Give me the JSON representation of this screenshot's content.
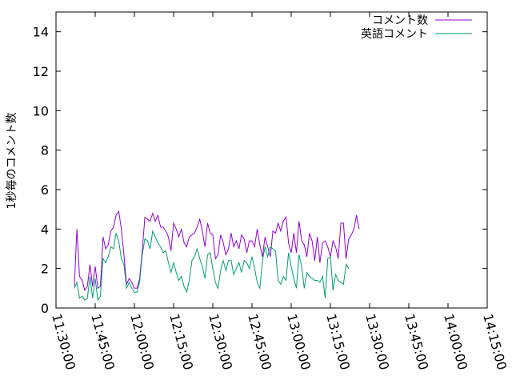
{
  "chart_data": {
    "type": "line",
    "ylabel": "1秒毎のコメント数",
    "ylim": [
      0,
      15
    ],
    "yticks": [
      0,
      2,
      4,
      6,
      8,
      10,
      12,
      14
    ],
    "xlim": [
      "11:30:00",
      "14:15:00"
    ],
    "xticks": [
      "11:30:00",
      "11:45:00",
      "12:00:00",
      "12:15:00",
      "12:30:00",
      "12:45:00",
      "13:00:00",
      "13:15:00",
      "13:30:00",
      "13:45:00",
      "14:00:00",
      "14:15:00"
    ],
    "grid": false,
    "legend_position": "top-right",
    "series": [
      {
        "name": "コメント数",
        "color": "#9400d3",
        "points": [
          [
            "11:37:00",
            1.1
          ],
          [
            "11:38:00",
            4.0
          ],
          [
            "11:39:00",
            1.6
          ],
          [
            "11:40:00",
            1.4
          ],
          [
            "11:41:00",
            0.9
          ],
          [
            "11:42:00",
            1.1
          ],
          [
            "11:43:00",
            2.2
          ],
          [
            "11:44:00",
            1.1
          ],
          [
            "11:45:00",
            2.1
          ],
          [
            "11:46:00",
            1.0
          ],
          [
            "11:47:00",
            1.1
          ],
          [
            "11:48:00",
            3.6
          ],
          [
            "11:49:00",
            3.0
          ],
          [
            "11:50:00",
            3.2
          ],
          [
            "11:51:00",
            3.9
          ],
          [
            "11:52:00",
            4.1
          ],
          [
            "11:53:00",
            4.7
          ],
          [
            "11:54:00",
            4.9
          ],
          [
            "11:55:00",
            4.0
          ],
          [
            "11:56:00",
            2.7
          ],
          [
            "11:57:00",
            1.2
          ],
          [
            "11:58:00",
            1.5
          ],
          [
            "11:59:00",
            1.3
          ],
          [
            "12:00:00",
            1.0
          ],
          [
            "12:01:00",
            1.0
          ],
          [
            "12:02:00",
            1.5
          ],
          [
            "12:03:00",
            2.9
          ],
          [
            "12:04:00",
            4.6
          ],
          [
            "12:05:00",
            4.5
          ],
          [
            "12:06:00",
            4.4
          ],
          [
            "12:07:00",
            4.8
          ],
          [
            "12:08:00",
            4.4
          ],
          [
            "12:09:00",
            4.7
          ],
          [
            "12:10:00",
            4.1
          ],
          [
            "12:11:00",
            4.1
          ],
          [
            "12:12:00",
            3.9
          ],
          [
            "12:13:00",
            3.6
          ],
          [
            "12:14:00",
            2.9
          ],
          [
            "12:15:00",
            4.3
          ],
          [
            "12:16:00",
            4.0
          ],
          [
            "12:17:00",
            3.6
          ],
          [
            "12:18:00",
            4.0
          ],
          [
            "12:19:00",
            3.3
          ],
          [
            "12:20:00",
            3.1
          ],
          [
            "12:21:00",
            3.6
          ],
          [
            "12:22:00",
            3.7
          ],
          [
            "12:23:00",
            3.8
          ],
          [
            "12:24:00",
            4.1
          ],
          [
            "12:25:00",
            4.5
          ],
          [
            "12:26:00",
            3.9
          ],
          [
            "12:27:00",
            3.1
          ],
          [
            "12:28:00",
            4.3
          ],
          [
            "12:29:00",
            3.8
          ],
          [
            "12:30:00",
            3.7
          ],
          [
            "12:31:00",
            2.5
          ],
          [
            "12:32:00",
            2.7
          ],
          [
            "12:33:00",
            3.7
          ],
          [
            "12:34:00",
            3.3
          ],
          [
            "12:35:00",
            2.7
          ],
          [
            "12:36:00",
            3.0
          ],
          [
            "12:37:00",
            3.8
          ],
          [
            "12:38:00",
            3.1
          ],
          [
            "12:39:00",
            3.4
          ],
          [
            "12:40:00",
            3.0
          ],
          [
            "12:41:00",
            3.7
          ],
          [
            "12:42:00",
            3.5
          ],
          [
            "12:43:00",
            2.8
          ],
          [
            "12:44:00",
            3.4
          ],
          [
            "12:45:00",
            3.4
          ],
          [
            "12:46:00",
            3.1
          ],
          [
            "12:47:00",
            4.0
          ],
          [
            "12:48:00",
            3.2
          ],
          [
            "12:49:00",
            2.6
          ],
          [
            "12:50:00",
            3.6
          ],
          [
            "12:51:00",
            3.1
          ],
          [
            "12:52:00",
            2.6
          ],
          [
            "12:53:00",
            3.9
          ],
          [
            "12:54:00",
            3.8
          ],
          [
            "12:55:00",
            4.3
          ],
          [
            "12:56:00",
            3.9
          ],
          [
            "12:57:00",
            4.4
          ],
          [
            "12:58:00",
            4.6
          ],
          [
            "12:59:00",
            3.3
          ],
          [
            "13:00:00",
            2.8
          ],
          [
            "13:01:00",
            3.8
          ],
          [
            "13:02:00",
            2.8
          ],
          [
            "13:03:00",
            4.4
          ],
          [
            "13:04:00",
            3.4
          ],
          [
            "13:05:00",
            3.2
          ],
          [
            "13:06:00",
            2.6
          ],
          [
            "13:07:00",
            3.8
          ],
          [
            "13:08:00",
            3.4
          ],
          [
            "13:09:00",
            2.4
          ],
          [
            "13:10:00",
            3.6
          ],
          [
            "13:11:00",
            2.3
          ],
          [
            "13:12:00",
            3.3
          ],
          [
            "13:13:00",
            3.4
          ],
          [
            "13:14:00",
            3.1
          ],
          [
            "13:15:00",
            2.6
          ],
          [
            "13:16:00",
            3.4
          ],
          [
            "13:17:00",
            3.1
          ],
          [
            "13:18:00",
            2.5
          ],
          [
            "13:19:00",
            4.3
          ],
          [
            "13:20:00",
            4.3
          ],
          [
            "13:21:00",
            2.5
          ],
          [
            "13:22:00",
            3.5
          ],
          [
            "13:23:00",
            3.7
          ],
          [
            "13:24:00",
            4.0
          ],
          [
            "13:25:00",
            4.7
          ],
          [
            "13:26:00",
            4.0
          ]
        ]
      },
      {
        "name": "英語コメント",
        "color": "#009e73",
        "points": [
          [
            "11:37:00",
            1.0
          ],
          [
            "11:38:00",
            1.3
          ],
          [
            "11:39:00",
            0.5
          ],
          [
            "11:40:00",
            0.6
          ],
          [
            "11:41:00",
            0.4
          ],
          [
            "11:42:00",
            0.5
          ],
          [
            "11:43:00",
            1.6
          ],
          [
            "11:44:00",
            0.5
          ],
          [
            "11:45:00",
            1.5
          ],
          [
            "11:46:00",
            0.4
          ],
          [
            "11:47:00",
            0.6
          ],
          [
            "11:48:00",
            2.5
          ],
          [
            "11:49:00",
            2.3
          ],
          [
            "11:50:00",
            2.6
          ],
          [
            "11:51:00",
            3.1
          ],
          [
            "11:52:00",
            3.0
          ],
          [
            "11:53:00",
            3.8
          ],
          [
            "11:54:00",
            3.4
          ],
          [
            "11:55:00",
            2.5
          ],
          [
            "11:56:00",
            2.2
          ],
          [
            "11:57:00",
            1.0
          ],
          [
            "11:58:00",
            1.3
          ],
          [
            "11:59:00",
            1.0
          ],
          [
            "12:00:00",
            0.8
          ],
          [
            "12:01:00",
            0.8
          ],
          [
            "12:02:00",
            1.3
          ],
          [
            "12:03:00",
            2.7
          ],
          [
            "12:04:00",
            3.5
          ],
          [
            "12:05:00",
            3.4
          ],
          [
            "12:06:00",
            3.0
          ],
          [
            "12:07:00",
            3.9
          ],
          [
            "12:08:00",
            3.6
          ],
          [
            "12:09:00",
            3.3
          ],
          [
            "12:10:00",
            3.1
          ],
          [
            "12:11:00",
            2.8
          ],
          [
            "12:12:00",
            2.9
          ],
          [
            "12:13:00",
            2.3
          ],
          [
            "12:14:00",
            1.8
          ],
          [
            "12:15:00",
            2.3
          ],
          [
            "12:16:00",
            1.8
          ],
          [
            "12:17:00",
            1.4
          ],
          [
            "12:18:00",
            1.6
          ],
          [
            "12:19:00",
            1.1
          ],
          [
            "12:20:00",
            0.8
          ],
          [
            "12:21:00",
            1.4
          ],
          [
            "12:22:00",
            2.4
          ],
          [
            "12:23:00",
            2.6
          ],
          [
            "12:24:00",
            3.0
          ],
          [
            "12:25:00",
            2.5
          ],
          [
            "12:26:00",
            2.1
          ],
          [
            "12:27:00",
            1.5
          ],
          [
            "12:28:00",
            2.7
          ],
          [
            "12:29:00",
            2.8
          ],
          [
            "12:30:00",
            2.0
          ],
          [
            "12:31:00",
            1.3
          ],
          [
            "12:32:00",
            1.0
          ],
          [
            "12:33:00",
            1.9
          ],
          [
            "12:34:00",
            2.4
          ],
          [
            "12:35:00",
            1.9
          ],
          [
            "12:36:00",
            2.4
          ],
          [
            "12:37:00",
            2.4
          ],
          [
            "12:38:00",
            1.7
          ],
          [
            "12:39:00",
            2.0
          ],
          [
            "12:40:00",
            2.3
          ],
          [
            "12:41:00",
            1.8
          ],
          [
            "12:42:00",
            2.4
          ],
          [
            "12:43:00",
            2.3
          ],
          [
            "12:44:00",
            2.0
          ],
          [
            "12:45:00",
            2.6
          ],
          [
            "12:46:00",
            2.0
          ],
          [
            "12:47:00",
            1.3
          ],
          [
            "12:48:00",
            1.0
          ],
          [
            "12:49:00",
            2.4
          ],
          [
            "12:50:00",
            3.1
          ],
          [
            "12:51:00",
            2.6
          ],
          [
            "12:52:00",
            3.1
          ],
          [
            "12:53:00",
            3.0
          ],
          [
            "12:54:00",
            2.9
          ],
          [
            "12:55:00",
            1.4
          ],
          [
            "12:56:00",
            1.2
          ],
          [
            "12:57:00",
            1.6
          ],
          [
            "12:58:00",
            1.4
          ],
          [
            "12:59:00",
            2.8
          ],
          [
            "13:00:00",
            2.1
          ],
          [
            "13:01:00",
            1.5
          ],
          [
            "13:02:00",
            1.0
          ],
          [
            "13:03:00",
            2.7
          ],
          [
            "13:04:00",
            2.1
          ],
          [
            "13:05:00",
            1.0
          ],
          [
            "13:06:00",
            1.8
          ],
          [
            "13:07:00",
            1.6
          ],
          [
            "13:08:00",
            1.5
          ],
          [
            "13:09:00",
            1.4
          ],
          [
            "13:10:00",
            1.4
          ],
          [
            "13:11:00",
            1.3
          ],
          [
            "13:12:00",
            1.6
          ],
          [
            "13:13:00",
            0.5
          ],
          [
            "13:14:00",
            2.5
          ],
          [
            "13:15:00",
            2.6
          ],
          [
            "13:16:00",
            0.9
          ],
          [
            "13:17:00",
            1.7
          ],
          [
            "13:18:00",
            1.4
          ],
          [
            "13:19:00",
            1.3
          ],
          [
            "13:20:00",
            1.2
          ],
          [
            "13:21:00",
            2.2
          ],
          [
            "13:22:00",
            2.0
          ]
        ]
      }
    ]
  }
}
